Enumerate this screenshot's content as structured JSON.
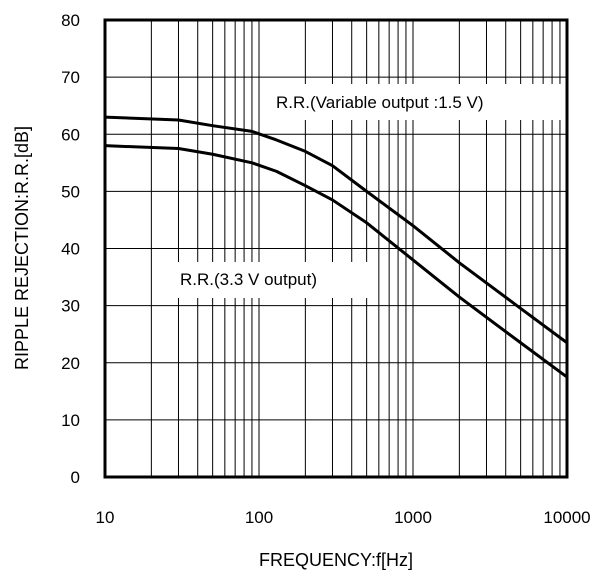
{
  "chart_data": {
    "type": "line",
    "xlabel": "FREQUENCY:f[Hz]",
    "ylabel": "RIPPLE REJECTION:R.R.[dB]",
    "x_scale": "log",
    "xlim": [
      10,
      10000
    ],
    "ylim": [
      0,
      80
    ],
    "x_ticks": [
      "10",
      "100",
      "1000",
      "10000"
    ],
    "y_ticks": [
      "0",
      "10",
      "20",
      "30",
      "40",
      "50",
      "60",
      "70",
      "80"
    ],
    "grid": true,
    "series": [
      {
        "name": "R.R.(Variable output :1.5 V)",
        "color": "#000000",
        "points": [
          [
            10,
            63
          ],
          [
            30,
            62.5
          ],
          [
            50,
            61.5
          ],
          [
            90,
            60.5
          ],
          [
            130,
            59
          ],
          [
            200,
            57
          ],
          [
            300,
            54.5
          ],
          [
            500,
            50
          ],
          [
            1000,
            44
          ],
          [
            2000,
            37.5
          ],
          [
            5000,
            29.5
          ],
          [
            10000,
            23.5
          ]
        ]
      },
      {
        "name": "R.R.(3.3 V output)",
        "color": "#000000",
        "points": [
          [
            10,
            58
          ],
          [
            30,
            57.5
          ],
          [
            50,
            56.5
          ],
          [
            90,
            55
          ],
          [
            130,
            53.5
          ],
          [
            200,
            51
          ],
          [
            300,
            48.5
          ],
          [
            500,
            44.5
          ],
          [
            1000,
            38
          ],
          [
            2000,
            31.5
          ],
          [
            5000,
            23.5
          ],
          [
            10000,
            17.5
          ]
        ]
      }
    ]
  }
}
